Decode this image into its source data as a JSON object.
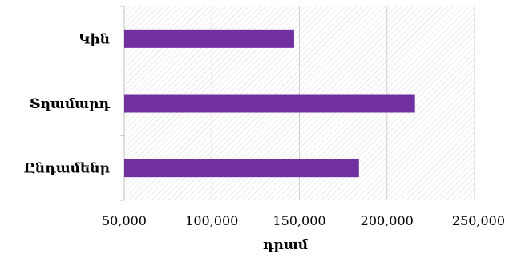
{
  "chart_data": {
    "type": "bar",
    "orientation": "horizontal",
    "categories": [
      "Կին",
      "Տղամարդ",
      "Ընդամենը"
    ],
    "values": [
      147000,
      216000,
      184000
    ],
    "xlabel": "դրամ",
    "ylabel": "",
    "xlim": [
      50000,
      250000
    ],
    "xticks": [
      50000,
      100000,
      150000,
      200000,
      250000
    ],
    "tick_labels": [
      "50,000",
      "100,000",
      "150,000",
      "200,000",
      "250,000"
    ],
    "grid": true,
    "legend": "none",
    "colors": {
      "bar": "#7030a0",
      "plot_bg_hatch": "#d9d9d9",
      "gridline": "#d0d0d0"
    }
  }
}
